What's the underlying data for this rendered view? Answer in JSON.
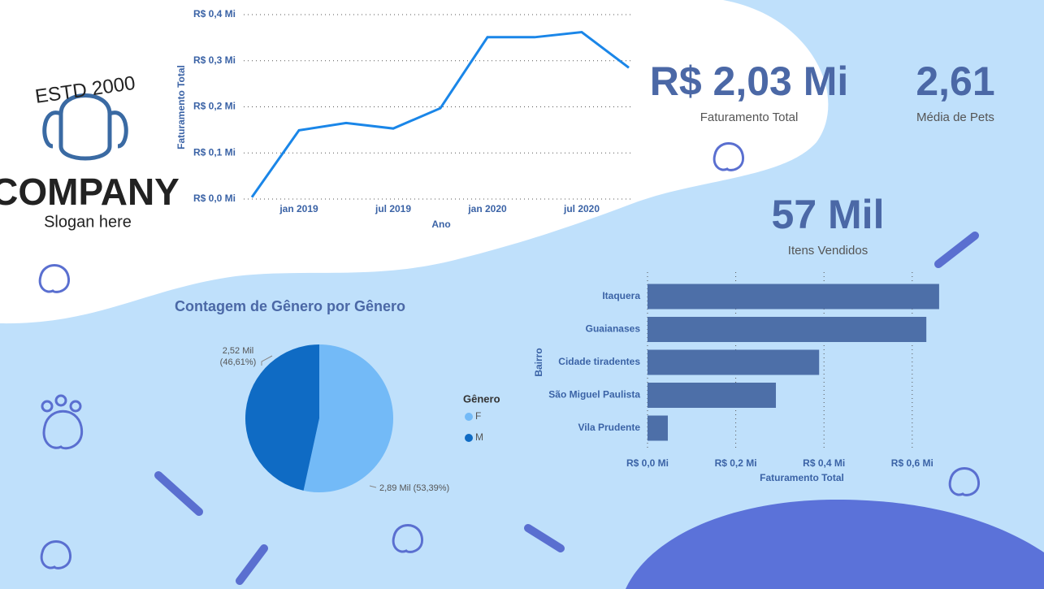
{
  "logo": {
    "estd": "ESTD 2000",
    "company": "COMPANY",
    "slogan": "Slogan here"
  },
  "kpis": [
    {
      "value": "R$ 2,03 Mi",
      "label": "Faturamento Total"
    },
    {
      "value": "2,61",
      "label": "Média de Pets"
    },
    {
      "value": "57 Mil",
      "label": "Itens Vendidos"
    }
  ],
  "chart_data": [
    {
      "type": "line",
      "y_label": "Faturamento Total",
      "x_label": "Ano",
      "categories": [
        null,
        "jan 2019",
        null,
        "jul 2019",
        null,
        "jan 2020",
        null,
        "jul 2020",
        null
      ],
      "values": [
        0.004,
        0.149,
        0.165,
        0.153,
        0.197,
        0.351,
        0.351,
        0.362,
        0.285
      ],
      "color": "#1a86e8",
      "ylim": [
        0,
        0.4
      ],
      "yticks": [
        {
          "value": 0,
          "label": "R$ 0,0 Mi"
        },
        {
          "value": 0.1,
          "label": "R$ 0,1 Mi"
        },
        {
          "value": 0.2,
          "label": "R$ 0,2 Mi"
        },
        {
          "value": 0.3,
          "label": "R$ 0,3 Mi"
        },
        {
          "value": 0.4,
          "label": "R$ 0,4 Mi"
        }
      ],
      "grid": true
    },
    {
      "type": "pie",
      "title": "Contagem de Gênero por Gênero",
      "legend_title": "Gênero",
      "categories": [
        "F",
        "M"
      ],
      "values": [
        2.89,
        2.52
      ],
      "value_labels": [
        "2,89 Mil (53,39%)",
        "2,52 Mil (46,61%)"
      ],
      "colors": [
        "#73baf7",
        "#0f6bc4"
      ]
    },
    {
      "type": "hbar",
      "y_label": "Bairro",
      "x_label": "Faturamento Total",
      "categories": [
        "Itaquera",
        "Guaianases",
        "Cidade tiradentes",
        "São Miguel Paulista",
        "Vila Prudente"
      ],
      "values": [
        0.661,
        0.632,
        0.389,
        0.291,
        0.046
      ],
      "color": "#4d6fa8",
      "xlim": [
        0,
        0.7
      ],
      "xticks": [
        {
          "value": 0,
          "label": "R$ 0,0 Mi"
        },
        {
          "value": 0.2,
          "label": "R$ 0,2 Mi"
        },
        {
          "value": 0.4,
          "label": "R$ 0,4 Mi"
        },
        {
          "value": 0.6,
          "label": "R$ 0,6 Mi"
        }
      ],
      "grid": true
    }
  ]
}
